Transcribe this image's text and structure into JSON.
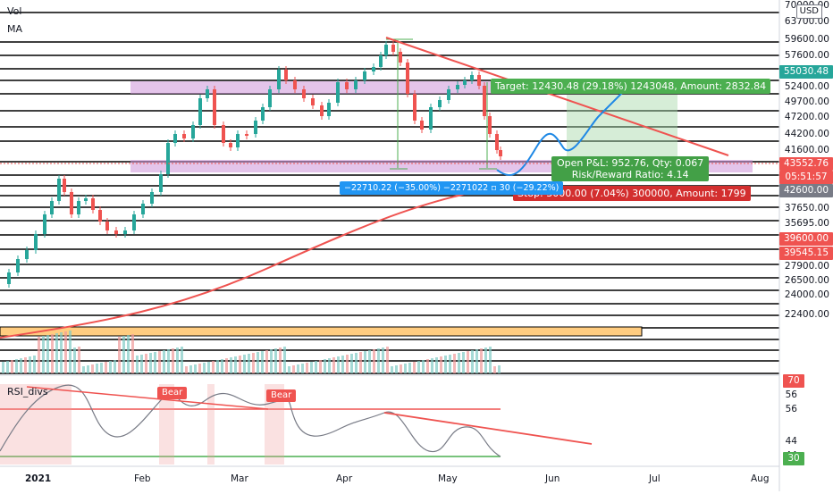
{
  "legend": {
    "volume": "Vol",
    "ma": "MA",
    "rsi": "RSI_divs"
  },
  "currency_badge": "USD",
  "price_axis": {
    "ticks": [
      "70000.00",
      "63700.00",
      "59600.00",
      "57600.00",
      "55000.00",
      "52400.00",
      "49700.00",
      "47200.00",
      "44200.00",
      "41600.00",
      "39800.00",
      "37650.00",
      "35695.00",
      "33600.00",
      "30820.00",
      "27900.00",
      "26500.00",
      "24000.00",
      "22400.00"
    ],
    "tags": [
      {
        "text": "55030.48",
        "color": "#26a69a"
      },
      {
        "text": "43552.76",
        "color": "#ef5350"
      },
      {
        "text": "05:51:57",
        "color": "#ef5350"
      },
      {
        "text": "42600.00",
        "color": "#787b86"
      },
      {
        "text": "39600.00",
        "color": "#ef5350"
      },
      {
        "text": "39545.15",
        "color": "#ef5350"
      }
    ]
  },
  "rsi_axis": {
    "ticks": [
      "56",
      "56",
      "44",
      "44"
    ],
    "tag_top": "70",
    "tag_bottom": "30"
  },
  "x_axis": {
    "ticks": [
      "2021",
      "Feb",
      "Mar",
      "Apr",
      "May",
      "Jun",
      "Jul",
      "Aug"
    ]
  },
  "position_tool": {
    "target": "Target: 12430.48 (29.18%) 1243048, Amount: 2832.84",
    "open_pnl": "Open P&L: 952.76, Qty: 0.067",
    "risk_reward": "Risk/Reward Ratio: 4.14",
    "stop": "Stop: 3000.00 (7.04%) 300000, Amount: 1799"
  },
  "measure_label": "−22710.22 (−35.00%) −2271022 ▫ 30 (−29.22%)",
  "rsi_labels": [
    "Bear",
    "Bear"
  ],
  "colors": {
    "up": "#26a69a",
    "down": "#ef5350",
    "zone": "#ce93d8",
    "target": "#4caf50",
    "stop": "#d32f2f",
    "measure": "#2196f3",
    "orange_zone": "#ffcc80"
  },
  "chart_data": {
    "type": "candlestick",
    "symbol_currency": "USD",
    "x": [
      "2021-01",
      "2021-02",
      "2021-03",
      "2021-04",
      "2021-05"
    ],
    "close_approx": [
      33000,
      45000,
      58800,
      57700,
      43552.76
    ],
    "last_price": 43552.76,
    "ylim": [
      22400,
      70000
    ]
  }
}
